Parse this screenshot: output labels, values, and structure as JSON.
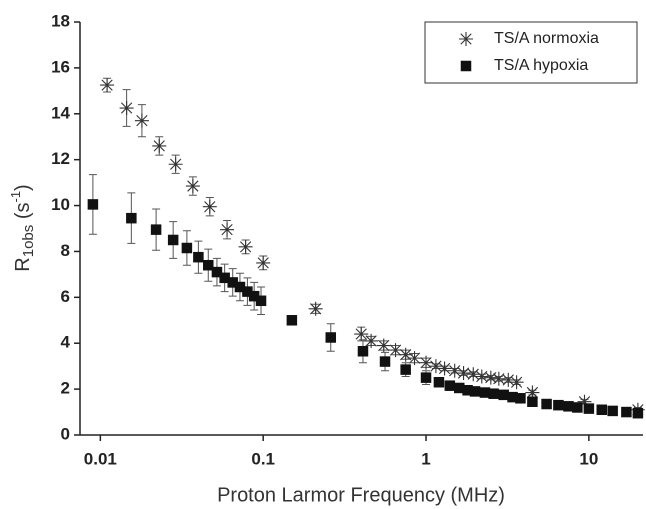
{
  "chart_data": {
    "type": "scatter",
    "x_label": "Proton Larmor Frequency (MHz)",
    "y_label": {
      "base": "R",
      "sub": "1obs",
      "mid": " (s",
      "sup": "-1",
      "end": ")"
    },
    "xscale": "log",
    "xlim": [
      0.0075,
      21.5
    ],
    "xticks": [
      0.01,
      0.1,
      1,
      10
    ],
    "ylim": [
      0,
      18
    ],
    "yticks": [
      0,
      2,
      4,
      6,
      8,
      10,
      12,
      14,
      16,
      18
    ],
    "legend": "upper right",
    "series": [
      {
        "name": "TS/A normoxia",
        "marker": "star",
        "color": "#333333",
        "x": [
          0.011,
          0.0145,
          0.018,
          0.023,
          0.029,
          0.037,
          0.047,
          0.06,
          0.078,
          0.1,
          0.21,
          0.4,
          0.46,
          0.55,
          0.65,
          0.75,
          0.85,
          1.0,
          1.15,
          1.3,
          1.5,
          1.7,
          1.95,
          2.2,
          2.5,
          2.8,
          3.2,
          3.6,
          4.5,
          9.4,
          20
        ],
        "values": [
          15.25,
          14.25,
          13.7,
          12.6,
          11.8,
          10.85,
          9.95,
          8.95,
          8.2,
          7.5,
          5.5,
          4.4,
          4.1,
          3.9,
          3.7,
          3.5,
          3.35,
          3.15,
          3.0,
          2.9,
          2.8,
          2.7,
          2.65,
          2.55,
          2.5,
          2.45,
          2.4,
          2.3,
          1.85,
          1.45,
          1.1
        ],
        "errors": [
          0.3,
          0.8,
          0.7,
          0.4,
          0.4,
          0.4,
          0.4,
          0.4,
          0.3,
          0.3,
          0.2,
          0.3,
          0.2,
          0.2,
          0.2,
          0.2,
          0.2,
          0.2,
          0.1,
          0.1,
          0.1,
          0.1,
          0.1,
          0.1,
          0.1,
          0.1,
          0.1,
          0.1,
          0.1,
          0.1,
          0.1
        ]
      },
      {
        "name": "TS/A hypoxia",
        "marker": "square",
        "color": "#111111",
        "x": [
          0.009,
          0.0155,
          0.022,
          0.028,
          0.034,
          0.04,
          0.046,
          0.052,
          0.058,
          0.065,
          0.072,
          0.08,
          0.088,
          0.097,
          0.15,
          0.26,
          0.41,
          0.56,
          0.75,
          1.0,
          1.2,
          1.4,
          1.6,
          1.8,
          2.0,
          2.3,
          2.6,
          3.0,
          3.4,
          3.8,
          4.5,
          5.5,
          6.5,
          7.5,
          8.5,
          10,
          12,
          14,
          17,
          20
        ],
        "values": [
          10.05,
          9.45,
          8.95,
          8.5,
          8.15,
          7.75,
          7.4,
          7.1,
          6.85,
          6.65,
          6.45,
          6.25,
          6.05,
          5.85,
          5.0,
          4.25,
          3.65,
          3.2,
          2.85,
          2.5,
          2.3,
          2.15,
          2.05,
          1.95,
          1.9,
          1.85,
          1.8,
          1.75,
          1.65,
          1.6,
          1.45,
          1.35,
          1.3,
          1.25,
          1.2,
          1.15,
          1.1,
          1.05,
          1.0,
          0.95
        ],
        "errors": [
          1.3,
          1.1,
          0.9,
          0.8,
          0.75,
          0.7,
          0.7,
          0.6,
          0.6,
          0.6,
          0.6,
          0.6,
          0.6,
          0.6,
          0.1,
          0.6,
          0.5,
          0.4,
          0.3,
          0.3,
          0.2,
          0.2,
          0.1,
          0.1,
          0.1,
          0.1,
          0.1,
          0.1,
          0.1,
          0.1,
          0.1,
          0.1,
          0.1,
          0.1,
          0.1,
          0.1,
          0.1,
          0.1,
          0.1,
          0.1
        ]
      }
    ]
  }
}
